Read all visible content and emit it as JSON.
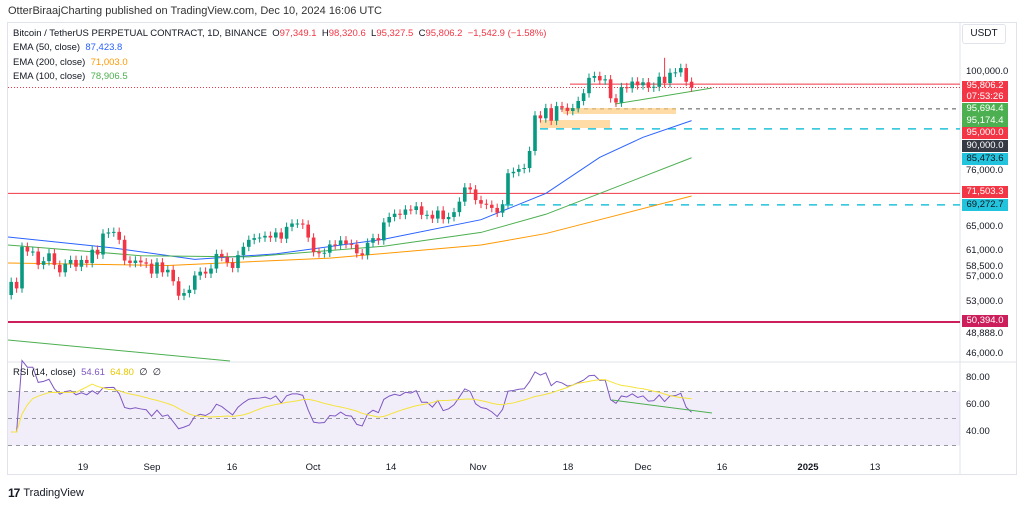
{
  "header": {
    "published": "OtterBiraajCharting published on TradingView.com, Dec 10, 2024 16:06 UTC"
  },
  "legend": {
    "symbol": "Bitcoin / TetherUS PERPETUAL CONTRACT, 1D, BINANCE",
    "o_label": "O",
    "o": "97,349.1",
    "h_label": "H",
    "h": "98,320.6",
    "l_label": "L",
    "l": "95,327.5",
    "c_label": "C",
    "c": "95,806.2",
    "change": "−1,542.9 (−1.58%)",
    "ema50": {
      "label": "EMA (50, close)",
      "value": "87,423.8",
      "color": "#2962ff"
    },
    "ema200": {
      "label": "EMA (200, close)",
      "value": "71,003.0",
      "color": "#ff9800"
    },
    "ema100": {
      "label": "EMA (100, close)",
      "value": "78,906.5",
      "color": "#4caf50"
    }
  },
  "currency": "USDT",
  "price_axis": [
    "100,000.0",
    "76,000.0",
    "65,000.0",
    "61,000.0",
    "58,500.0",
    "57,000.0",
    "53,000.0",
    "48,888.0",
    "46,000.0"
  ],
  "tags": [
    {
      "v": "95,806.2",
      "sub": "07:53:26",
      "color": "#f23645"
    },
    {
      "v": "95,694.4",
      "color": "#4caf50"
    },
    {
      "v": "95,174.4",
      "color": "#4caf50"
    },
    {
      "v": "95,000.0",
      "color": "#f23645"
    },
    {
      "v": "90,000.0",
      "color": "#363a45"
    },
    {
      "v": "85,473.6",
      "color": "#22c3dc"
    },
    {
      "v": "71,503.3",
      "color": "#f23645"
    },
    {
      "v": "69,272.7",
      "color": "#22c3dc"
    },
    {
      "v": "50,394.0",
      "color": "#cc1e5a"
    }
  ],
  "rsi": {
    "label": "RSI (14, close)",
    "value": "54.61",
    "ma": "64.80",
    "na1": "∅",
    "na2": "∅",
    "axis": [
      "80.00",
      "60.00",
      "40.00"
    ],
    "color": "#7e57c2",
    "ma_color": "#f5e33b"
  },
  "time_axis": [
    "19",
    "Sep",
    "16",
    "Oct",
    "14",
    "Nov",
    "18",
    "Dec",
    "16",
    "2025",
    "13"
  ],
  "brand": "TradingView",
  "chart_data": {
    "type": "candlestick",
    "title": "Bitcoin / TetherUS PERPETUAL CONTRACT, 1D, BINANCE",
    "start_date": "2024-08-05",
    "scale": "log",
    "closes": [
      54000,
      56000,
      55000,
      61700,
      60900,
      60900,
      58700,
      59300,
      60600,
      58700,
      57500,
      58900,
      59500,
      58400,
      59500,
      59000,
      61200,
      60400,
      64000,
      64200,
      64300,
      62900,
      59400,
      59000,
      59400,
      59100,
      58900,
      57300,
      59100,
      57500,
      57900,
      56100,
      53900,
      54300,
      54800,
      57000,
      57600,
      57300,
      58100,
      60500,
      60000,
      59100,
      58200,
      60300,
      61700,
      62900,
      63200,
      63300,
      63600,
      63300,
      64200,
      63100,
      65200,
      65800,
      65800,
      65600,
      63300,
      60800,
      60600,
      60700,
      62100,
      62000,
      62800,
      62200,
      62100,
      60600,
      60300,
      62400,
      63200,
      62800,
      66000,
      67000,
      67600,
      67400,
      68400,
      68300,
      69000,
      67400,
      67400,
      66700,
      68200,
      66600,
      67000,
      67900,
      69900,
      72700,
      72300,
      70200,
      69500,
      69300,
      68700,
      67800,
      69400,
      75600,
      75900,
      76500,
      76700,
      80400,
      88700,
      88000,
      90500,
      87400,
      91000,
      90600,
      89800,
      90500,
      92300,
      94300,
      98400,
      98900,
      97700,
      98000,
      93000,
      91900,
      95900,
      95600,
      97400,
      96400,
      97200,
      95800,
      96000,
      98700,
      97000,
      99800,
      99900,
      101100,
      97349,
      95806
    ],
    "first_open": 49500,
    "ema50": [
      [
        0,
        63400
      ],
      [
        20,
        61500
      ],
      [
        35,
        59600
      ],
      [
        50,
        60500
      ],
      [
        70,
        63000
      ],
      [
        88,
        66500
      ],
      [
        100,
        71500
      ],
      [
        110,
        79000
      ],
      [
        118,
        83500
      ],
      [
        127,
        87424
      ]
    ],
    "ema100": [
      [
        0,
        62000
      ],
      [
        25,
        60200
      ],
      [
        45,
        60000
      ],
      [
        70,
        61800
      ],
      [
        88,
        64200
      ],
      [
        100,
        67500
      ],
      [
        110,
        71500
      ],
      [
        127,
        78907
      ]
    ],
    "ema200": [
      [
        0,
        59000
      ],
      [
        30,
        58600
      ],
      [
        60,
        59800
      ],
      [
        88,
        62000
      ],
      [
        100,
        64000
      ],
      [
        110,
        66500
      ],
      [
        127,
        71003
      ]
    ],
    "levels": [
      95806.2,
      90000,
      85473.6,
      71503.3,
      69272.7,
      50394
    ],
    "rsi_range": [
      30,
      70
    ]
  }
}
